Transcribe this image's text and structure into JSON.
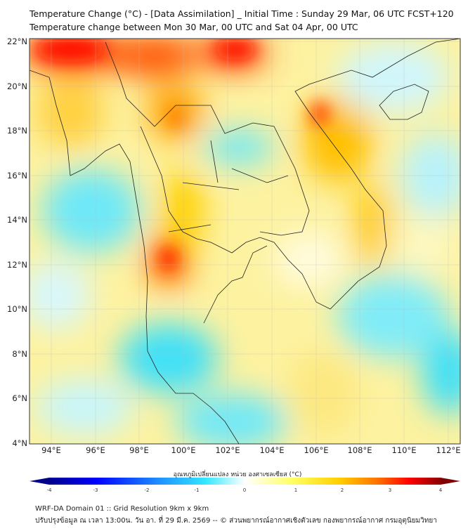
{
  "title_line1": "Temperature Change (°C) - [Data Assimilation] _ Initial Time : Sunday 29 Mar, 06 UTC FCST+120",
  "title_line2": "Temperature change between Mon 30 Mar, 00 UTC and Sat 04 Apr, 00 UTC",
  "map": {
    "lon_labels": [
      "94°E",
      "96°E",
      "98°E",
      "100°E",
      "102°E",
      "104°E",
      "106°E",
      "108°E",
      "110°E",
      "112°E"
    ],
    "lat_labels": [
      "22°N",
      "20°N",
      "18°N",
      "16°N",
      "14°N",
      "12°N",
      "10°N",
      "8°N",
      "6°N",
      "4°N"
    ]
  },
  "colorbar": {
    "label": "อุณหภูมิเปลี่ยนแปลง หน่วย องศาเซลเซียส (°C)",
    "ticks": [
      "-4",
      "-3",
      "-2",
      "-1",
      "0",
      "1",
      "2",
      "3",
      "4"
    ],
    "range": [
      -4,
      4
    ],
    "colors": [
      "#00008b",
      "#0000ff",
      "#1e90ff",
      "#33e0ff",
      "#ffffff",
      "#ffff66",
      "#ffd700",
      "#ff8c00",
      "#ff0000",
      "#7f0000"
    ]
  },
  "footer_line1": "WRF-DA Domain 01 :: Grid Resolution 9km x 9km",
  "footer_line2": "ปรับปรุงข้อมูล ณ เวลา 13:00น. วัน อา. ที่ 29 มี.ค. 2569 -- © ส่วนพยากรณ์อากาศเชิงตัวเลข กองพยากรณ์อากาศ กรมอุตุนิยมวิทยา"
}
